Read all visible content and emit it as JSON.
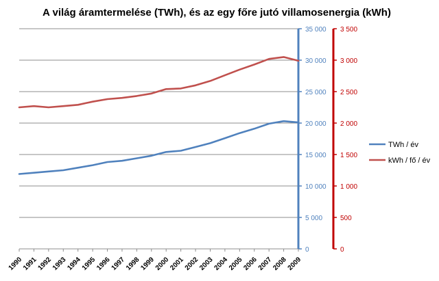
{
  "chart_data": {
    "type": "line",
    "title": "A világ  áramtermelése (TWh), és az egy főre jutó villamosenergia (kWh)",
    "x": [
      "1990",
      "1991",
      "1992",
      "1993",
      "1994",
      "1995",
      "1996",
      "1997",
      "1998",
      "1999",
      "2000",
      "2001",
      "2002",
      "2003",
      "2004",
      "2005",
      "2006",
      "2007",
      "2008",
      "2009"
    ],
    "series": [
      {
        "name": "TWh / év",
        "axis": "left",
        "color": "#4F81BD",
        "values": [
          11900,
          12100,
          12300,
          12500,
          12900,
          13300,
          13800,
          14000,
          14400,
          14800,
          15400,
          15600,
          16200,
          16800,
          17600,
          18400,
          19100,
          19900,
          20300,
          20100
        ]
      },
      {
        "name": "kWh / fő / év",
        "axis": "right",
        "color": "#C0504D",
        "values": [
          2250,
          2270,
          2250,
          2270,
          2290,
          2340,
          2380,
          2400,
          2430,
          2470,
          2540,
          2550,
          2600,
          2670,
          2760,
          2850,
          2930,
          3020,
          3050,
          2990
        ]
      }
    ],
    "y_left": {
      "ylim": [
        0,
        35000
      ],
      "tick_labels": [
        "0",
        "5 000",
        "10 000",
        "15 000",
        "20 000",
        "25 000",
        "30 000",
        "35 000"
      ],
      "color": "#4F81BD"
    },
    "y_right": {
      "ylim": [
        0,
        3500
      ],
      "tick_labels": [
        "0",
        "500",
        "1 000",
        "1 500",
        "2 000",
        "2 500",
        "3 000",
        "3 500"
      ],
      "color": "#C00000"
    },
    "grid": true,
    "legend": "right"
  }
}
